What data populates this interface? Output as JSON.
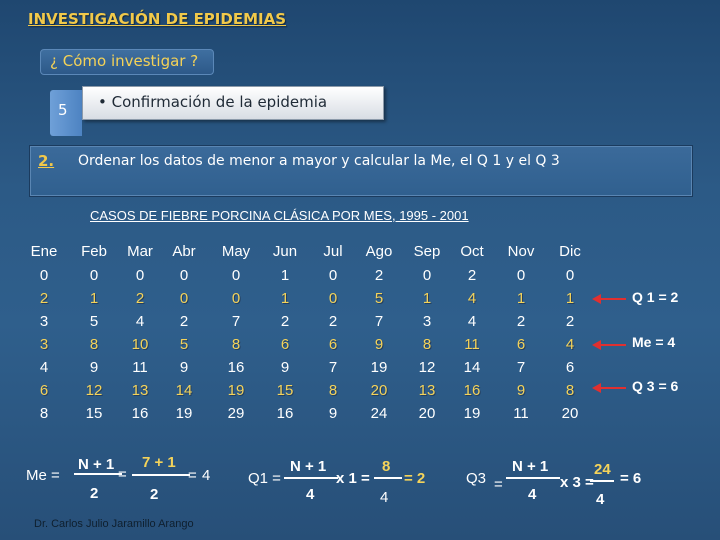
{
  "header": {
    "title": "INVESTIGACIÓN DE EPIDEMIAS",
    "subtitle": "¿ Cómo investigar ?"
  },
  "step5": {
    "number": "5",
    "text": "• Confirmación de la epidemia"
  },
  "step2": {
    "number": "2.",
    "text": "Ordenar los datos de menor a mayor y calcular la Me, el Q 1 y el Q 3"
  },
  "table": {
    "title": "CASOS DE FIEBRE PORCINA CLÁSICA  POR MES,  1995 - 2001",
    "months": [
      "Ene",
      "Feb",
      "Mar",
      "Abr",
      "May",
      "Jun",
      "Jul",
      "Ago",
      "Sep",
      "Oct",
      "Nov",
      "Dic"
    ],
    "rows": [
      [
        "0",
        "0",
        "0",
        "0",
        "0",
        "1",
        "0",
        "2",
        "0",
        "2",
        "0",
        "0"
      ],
      [
        "2",
        "1",
        "2",
        "0",
        "0",
        "1",
        "0",
        "5",
        "1",
        "4",
        "1",
        "1"
      ],
      [
        "3",
        "5",
        "4",
        "2",
        "7",
        "2",
        "2",
        "7",
        "3",
        "4",
        "2",
        "2"
      ],
      [
        "3",
        "8",
        "10",
        "5",
        "8",
        "6",
        "6",
        "9",
        "8",
        "11",
        "6",
        "4"
      ],
      [
        "4",
        "9",
        "11",
        "9",
        "16",
        "9",
        "7",
        "19",
        "12",
        "14",
        "7",
        "6"
      ],
      [
        "6",
        "12",
        "13",
        "14",
        "19",
        "15",
        "8",
        "20",
        "13",
        "16",
        "9",
        "8"
      ],
      [
        "8",
        "15",
        "16",
        "19",
        "29",
        "16",
        "9",
        "24",
        "20",
        "19",
        "11",
        "20"
      ]
    ],
    "highlight_rows": [
      1,
      3,
      5
    ]
  },
  "results": {
    "q1": "Q 1 = 2",
    "me": "Me = 4",
    "q3": "Q 3 = 6"
  },
  "formulas": {
    "me": {
      "label": "Me =",
      "num1": "N + 1",
      "eq1": "=",
      "den1": "2",
      "num2": "7 + 1",
      "den2": "2",
      "eq2": "=",
      "result": "4"
    },
    "q1": {
      "label": "Q1 =",
      "num1": "N + 1",
      "mult": "x 1 =",
      "den1": "4",
      "num2": "8",
      "den2": "4",
      "result": "= 2"
    },
    "q3": {
      "label": "Q3",
      "eq0": "=",
      "num1": "N + 1",
      "mult": "x 3 =",
      "den1": "4",
      "num2": "24",
      "den2": "4",
      "result": "=  6"
    }
  },
  "footer": {
    "author": "Dr. Carlos Julio Jaramillo Arango"
  },
  "colors": {
    "gold": "#f4d35a",
    "background": "#2c5a86",
    "arrow": "#e03030"
  }
}
